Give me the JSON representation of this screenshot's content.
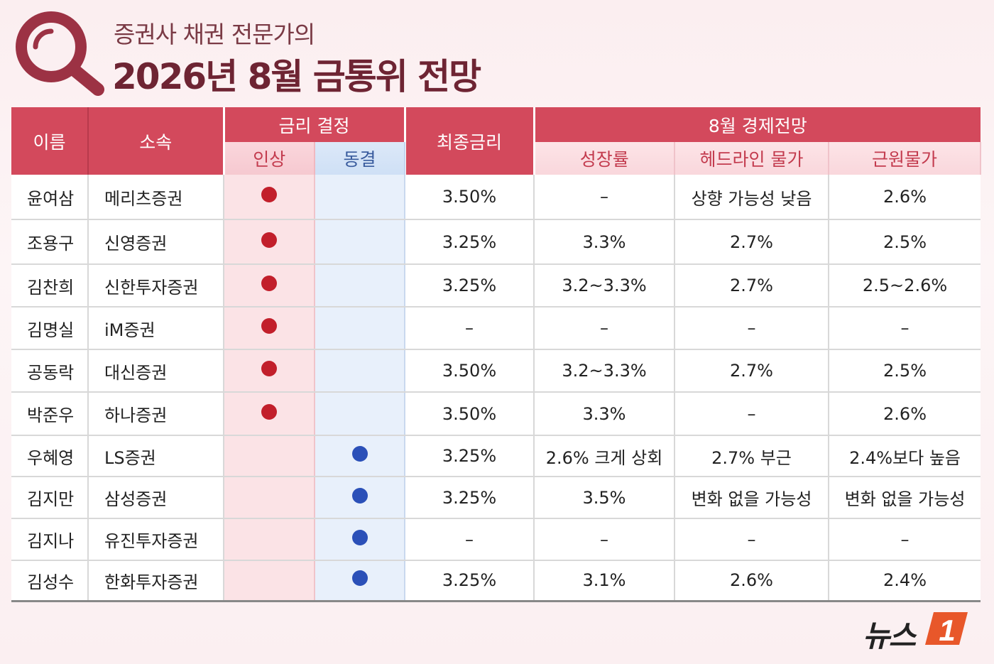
{
  "header": {
    "subtitle": "증권사 채권 전문가의",
    "title": "2026년 8월 금통위 전망"
  },
  "table": {
    "headers": {
      "name": "이름",
      "affiliation": "소속",
      "rate_decision": "금리 결정",
      "raise": "인상",
      "freeze": "동결",
      "final_rate": "최종금리",
      "outlook": "8월 경제전망",
      "growth": "성장률",
      "headline_inflation": "헤드라인 물가",
      "core_inflation": "근원물가"
    },
    "rows": [
      {
        "name": "윤여삼",
        "affiliation": "메리츠증권",
        "decision": "raise",
        "final_rate": "3.50%",
        "growth": "–",
        "headline": "상향 가능성 낮음",
        "core": "2.6%"
      },
      {
        "name": "조용구",
        "affiliation": "신영증권",
        "decision": "raise",
        "final_rate": "3.25%",
        "growth": "3.3%",
        "headline": "2.7%",
        "core": "2.5%"
      },
      {
        "name": "김찬희",
        "affiliation": "신한투자증권",
        "decision": "raise",
        "final_rate": "3.25%",
        "growth": "3.2~3.3%",
        "headline": "2.7%",
        "core": "2.5~2.6%"
      },
      {
        "name": "김명실",
        "affiliation": "iM증권",
        "decision": "raise",
        "final_rate": "–",
        "growth": "–",
        "headline": "–",
        "core": "–"
      },
      {
        "name": "공동락",
        "affiliation": "대신증권",
        "decision": "raise",
        "final_rate": "3.50%",
        "growth": "3.2~3.3%",
        "headline": "2.7%",
        "core": "2.5%"
      },
      {
        "name": "박준우",
        "affiliation": "하나증권",
        "decision": "raise",
        "final_rate": "3.50%",
        "growth": "3.3%",
        "headline": "–",
        "core": "2.6%"
      },
      {
        "name": "우혜영",
        "affiliation": "LS증권",
        "decision": "freeze",
        "final_rate": "3.25%",
        "growth": "2.6% 크게 상회",
        "headline": "2.7% 부근",
        "core": "2.4%보다 높음"
      },
      {
        "name": "김지만",
        "affiliation": "삼성증권",
        "decision": "freeze",
        "final_rate": "3.25%",
        "growth": "3.5%",
        "headline": "변화 없을 가능성",
        "core": "변화 없을 가능성"
      },
      {
        "name": "김지나",
        "affiliation": "유진투자증권",
        "decision": "freeze",
        "final_rate": "–",
        "growth": "–",
        "headline": "–",
        "core": "–"
      },
      {
        "name": "김성수",
        "affiliation": "한화투자증권",
        "decision": "freeze",
        "final_rate": "3.25%",
        "growth": "3.1%",
        "headline": "2.6%",
        "core": "2.4%"
      }
    ]
  },
  "icons": {
    "magnifier": "magnifier-icon",
    "raise_marker": "red-dot-icon",
    "freeze_marker": "blue-dot-icon"
  },
  "colors": {
    "header_red": "#d3495c",
    "title": "#6e2433",
    "raise_dot": "#c21f2b",
    "freeze_dot": "#2b50b8",
    "logo_orange": "#e8572a"
  },
  "logo": {
    "text": "뉴스",
    "mark": "1"
  }
}
